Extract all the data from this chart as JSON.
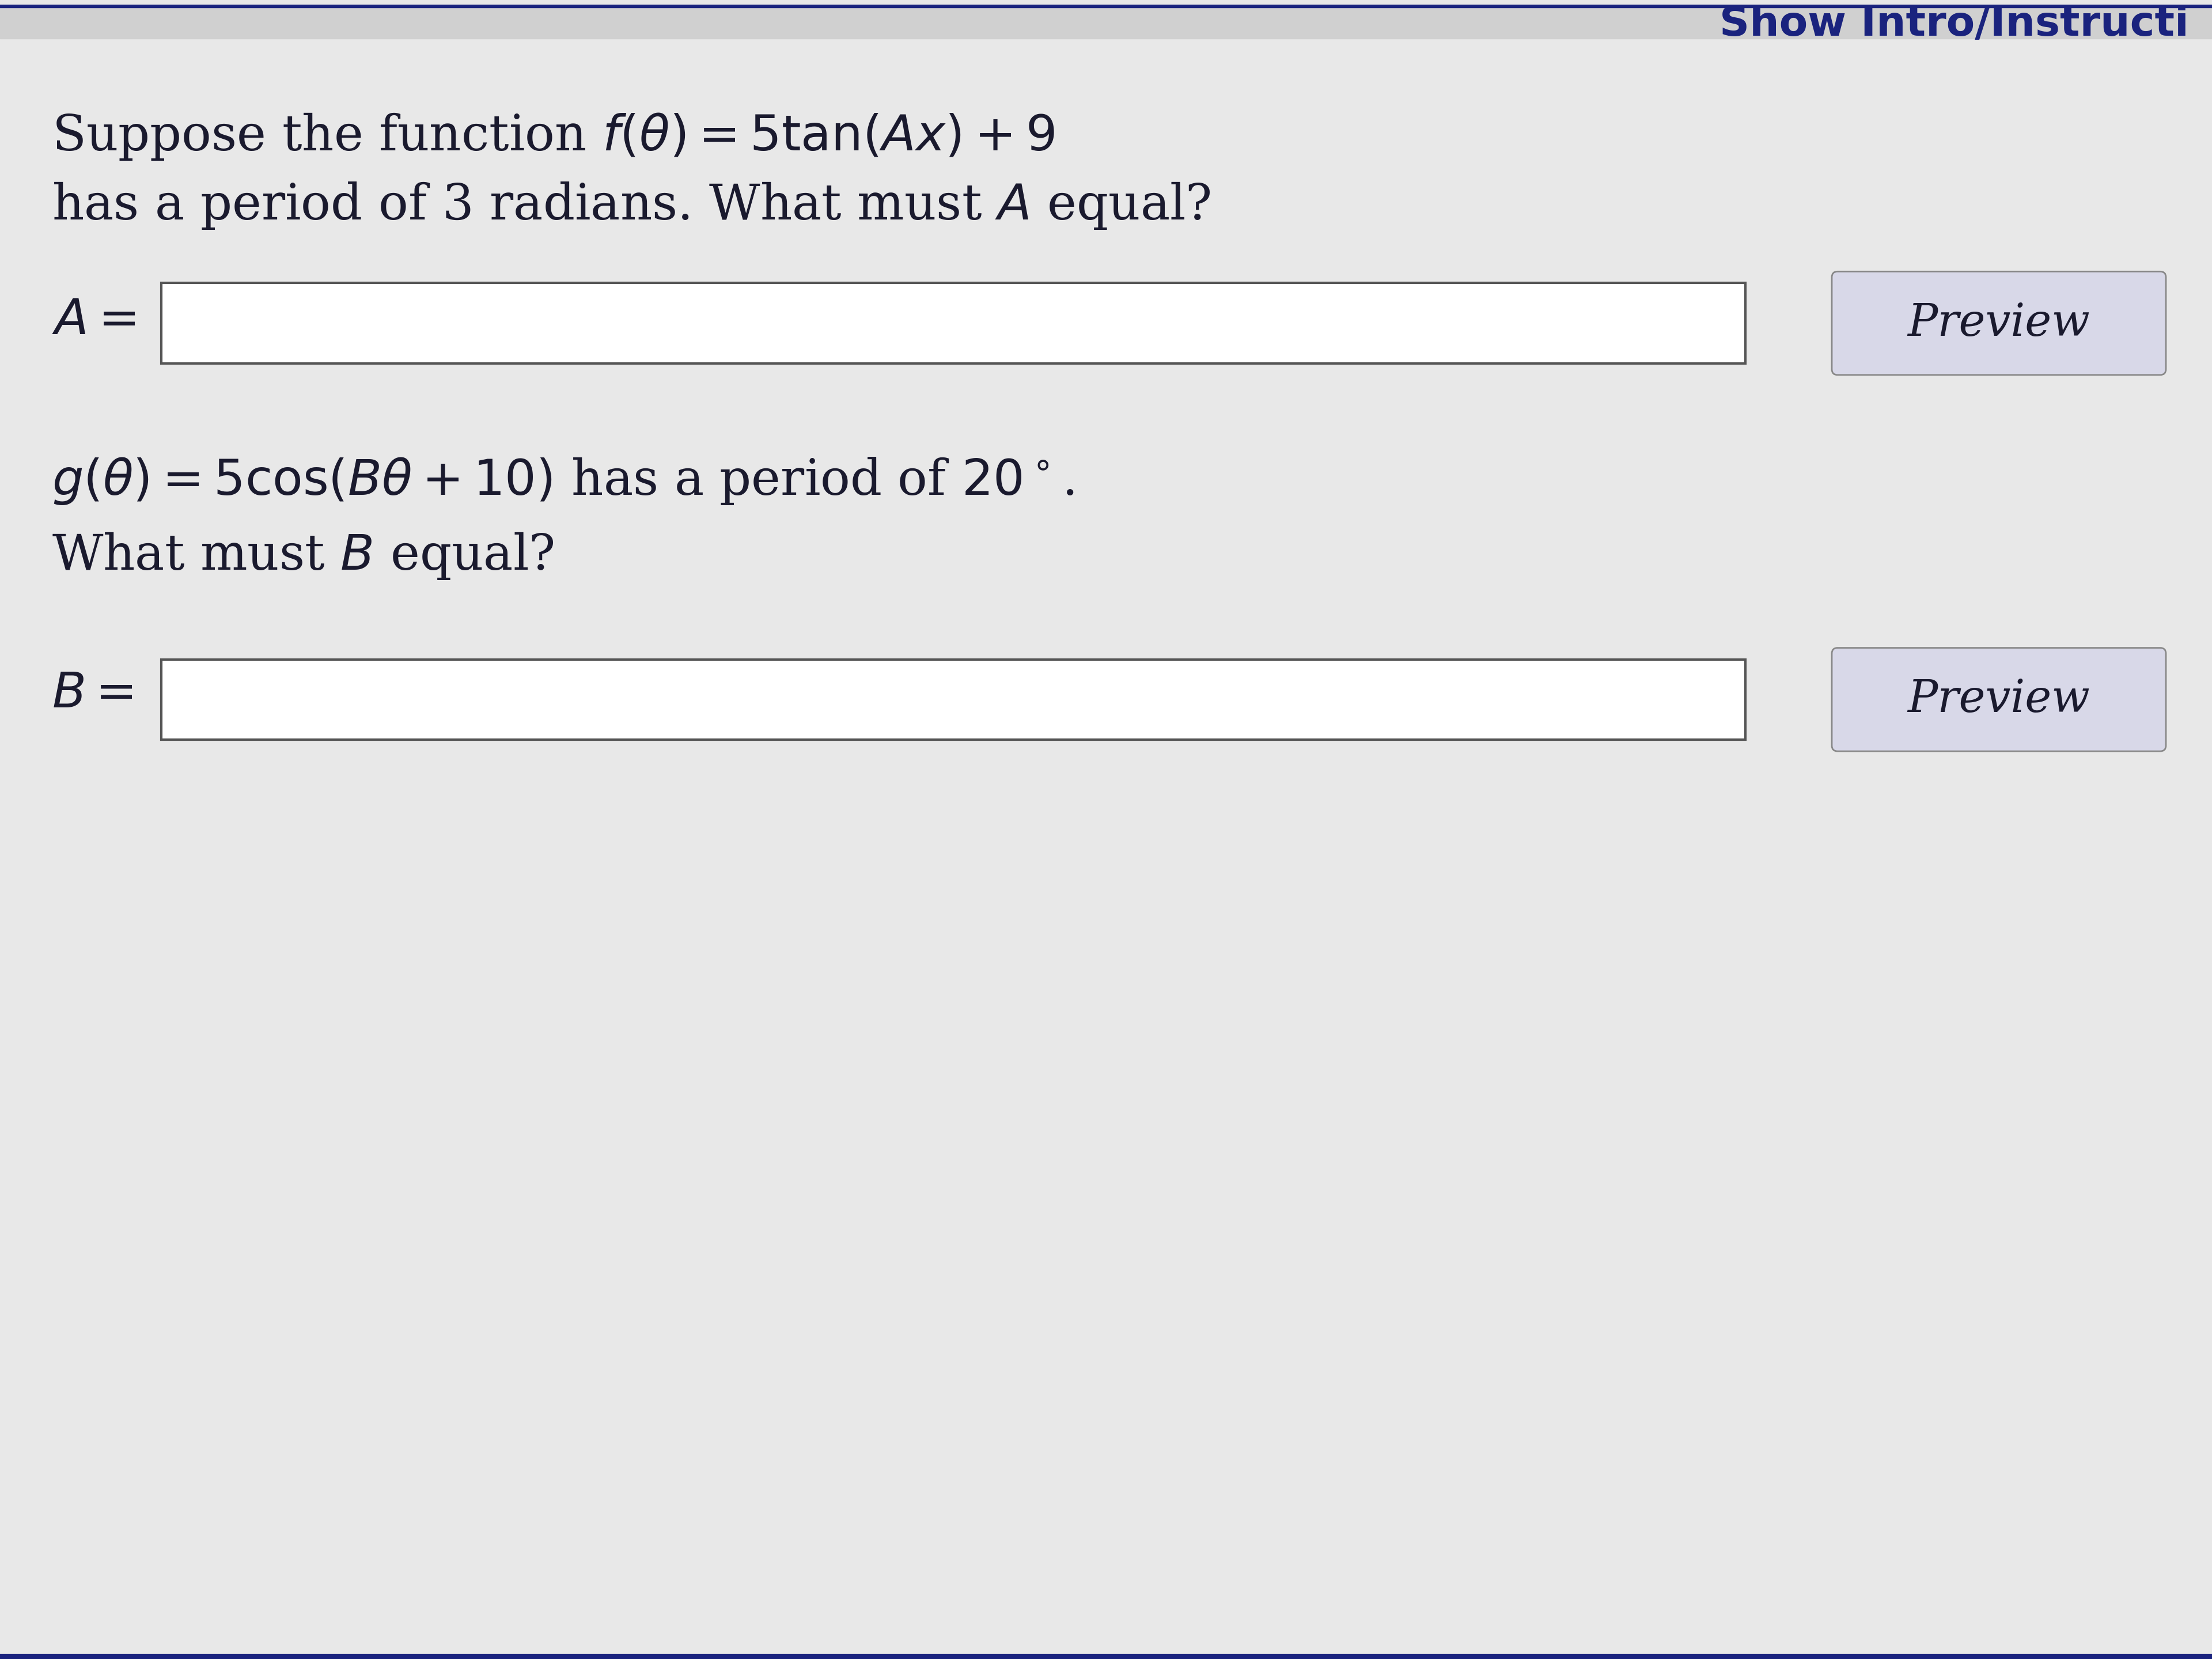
{
  "bg_color": "#e8e8e8",
  "top_bar_color": "#f0f0f0",
  "header_text": "Show Intro/Instructi",
  "header_color": "#1a237e",
  "header_fontsize": 52,
  "q1_line1": "Suppose the function $f(\\theta) = 5\\tan(A\\!x) + 9$",
  "q1_line2": "has a period of 3 radians. What must $A$ equal?",
  "q1_label": "$A =$",
  "q2_line1": "$g(\\theta) = 5\\cos(B\\theta + 10)$ has a period of $20^\\circ$.",
  "q2_line2": "What must $B$ equal?",
  "q2_label": "$B =$",
  "preview_text": "Preview",
  "text_color": "#1a1a2e",
  "text_fontsize": 62,
  "label_fontsize": 62,
  "preview_fontsize": 56,
  "input_box_color": "#ffffff",
  "input_box_border": "#555555",
  "preview_box_color": "#d8d8e8",
  "preview_box_border": "#888888",
  "divider_color": "#1a237e"
}
